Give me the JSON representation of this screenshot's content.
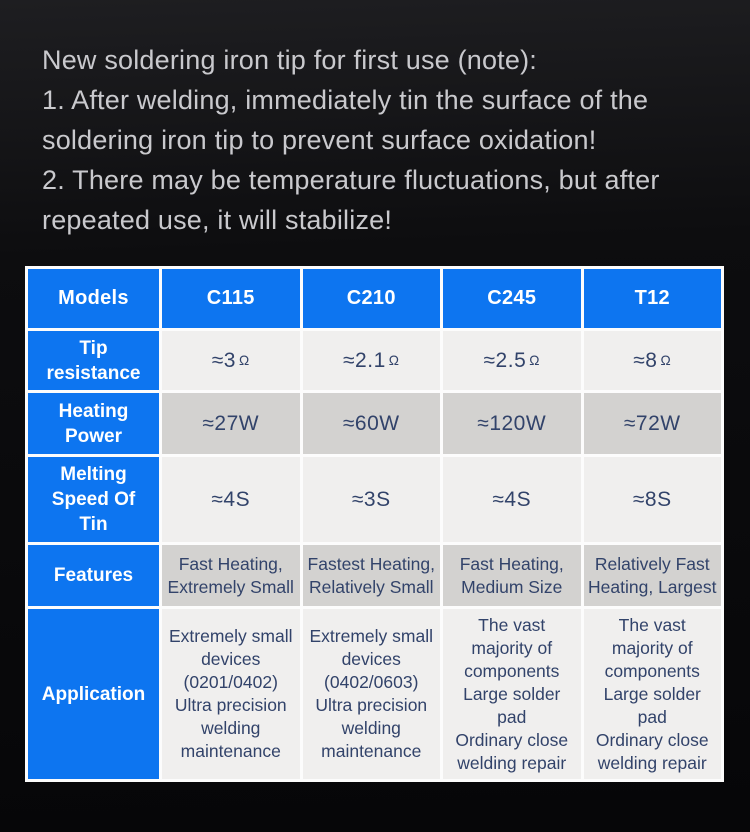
{
  "note": {
    "lines": [
      "New soldering iron tip for first use (note):",
      "1. After welding, immediately tin the surface of the",
      "soldering iron tip to prevent surface oxidation!",
      "2. There may be temperature fluctuations, but after",
      "repeated use, it will stabilize!"
    ]
  },
  "colors": {
    "accent_blue": "#0d75f0",
    "row_light": "#f0efee",
    "row_dark": "#d3d2d0",
    "grid_white": "#fcfcfc",
    "value_text": "#32436a",
    "note_text": "#c9c9cd"
  },
  "table": {
    "header": [
      "Models",
      "C115",
      "C210",
      "C245",
      "T12"
    ],
    "rows": {
      "tip_resistance": {
        "label": "Tip\nresistance",
        "unit": "Ω",
        "values": [
          "≈3",
          "≈2.1",
          "≈2.5",
          "≈8"
        ]
      },
      "heating_power": {
        "label": "Heating\nPower",
        "values": [
          "≈27W",
          "≈60W",
          "≈120W",
          "≈72W"
        ]
      },
      "melting_speed": {
        "label": "Melting\nSpeed Of\nTin",
        "values": [
          "≈4S",
          "≈3S",
          "≈4S",
          "≈8S"
        ]
      },
      "features": {
        "label": "Features",
        "values": [
          "Fast Heating,\nExtremely Small",
          "Fastest Heating,\nRelatively Small",
          "Fast Heating,\nMedium Size",
          "Relatively Fast\nHeating, Largest"
        ]
      },
      "application": {
        "label": "Application",
        "values": [
          "Extremely small\ndevices\n(0201/0402)\nUltra precision\nwelding\nmaintenance",
          "Extremely small\ndevices\n(0402/0603)\nUltra precision\nwelding\nmaintenance",
          "The vast\nmajority of\ncomponents\nLarge solder\npad\nOrdinary close\nwelding repair",
          "The vast\nmajority of\ncomponents\nLarge solder\npad\nOrdinary close\nwelding repair"
        ]
      }
    }
  }
}
